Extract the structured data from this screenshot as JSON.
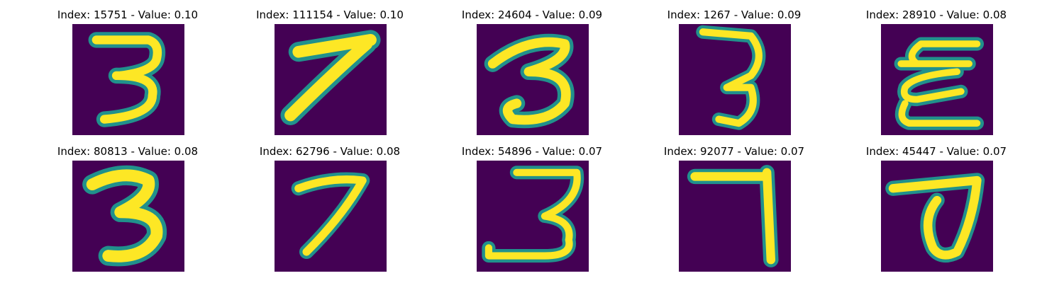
{
  "colormap": {
    "name": "viridis",
    "background": "#440154",
    "edge": "#21918c",
    "foreground": "#fde725"
  },
  "panels": [
    {
      "title": "Index: 15751 - Value: 0.10",
      "digit_icon": "digit-3-image"
    },
    {
      "title": "Index: 111154 - Value: 0.10",
      "digit_icon": "digit-7-image"
    },
    {
      "title": "Index: 24604 - Value: 0.09",
      "digit_icon": "digit-3-image"
    },
    {
      "title": "Index: 1267 - Value: 0.09",
      "digit_icon": "digit-3-image"
    },
    {
      "title": "Index: 28910 - Value: 0.08",
      "digit_icon": "digit-3-image"
    },
    {
      "title": "Index: 80813 - Value: 0.08",
      "digit_icon": "digit-3-image"
    },
    {
      "title": "Index: 62796 - Value: 0.08",
      "digit_icon": "digit-7-image"
    },
    {
      "title": "Index: 54896 - Value: 0.07",
      "digit_icon": "digit-3-image"
    },
    {
      "title": "Index: 92077 - Value: 0.07",
      "digit_icon": "digit-7-image"
    },
    {
      "title": "Index: 45447 - Value: 0.07",
      "digit_icon": "digit-7-image"
    }
  ]
}
